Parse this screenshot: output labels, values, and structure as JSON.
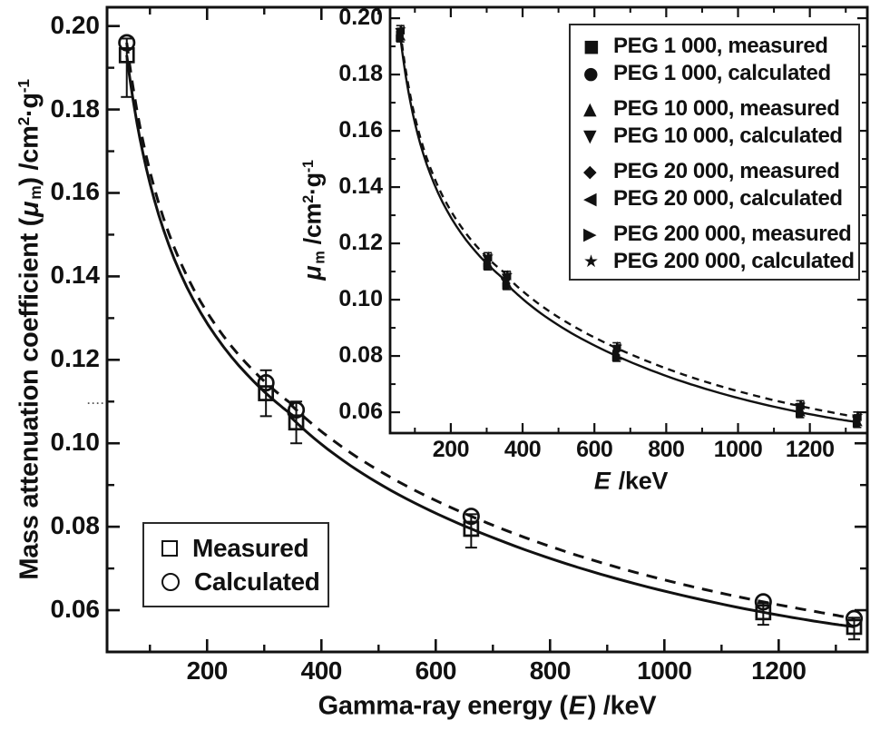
{
  "colors": {
    "ink": "#111111",
    "background": "#ffffff"
  },
  "noise_dots": "····",
  "chart_data": [
    {
      "id": "main",
      "type": "scatter",
      "title": "",
      "xlabel": "Gamma-ray energy (E) /keV",
      "ylabel": "Mass attenuation coefficient (μm) /cm²·g⁻¹",
      "xlabel_parts": [
        {
          "t": "Gamma-ray energy (",
          "s": "n"
        },
        {
          "t": "E",
          "s": "i"
        },
        {
          "t": ") /keV",
          "s": "n"
        }
      ],
      "ylabel_parts": [
        {
          "t": "Mass attenuation coefficient (",
          "s": "n"
        },
        {
          "t": "μ",
          "s": "i"
        },
        {
          "t": "m",
          "s": "sub"
        },
        {
          "t": ") /cm",
          "s": "n"
        },
        {
          "t": "2",
          "s": "sup"
        },
        {
          "t": "·g",
          "s": "n"
        },
        {
          "t": "-1",
          "s": "sup"
        }
      ],
      "xlim": [
        25,
        1355
      ],
      "ylim": [
        0.05,
        0.2045
      ],
      "grid": false,
      "x_major_ticks": [
        200,
        400,
        600,
        800,
        1000,
        1200
      ],
      "x_minor_ticks": [
        100,
        300,
        500,
        700,
        900,
        1100,
        1300
      ],
      "x_tick_labels": [
        "200",
        "400",
        "600",
        "800",
        "1000",
        "1200"
      ],
      "y_major_ticks": [
        0.06,
        0.08,
        0.1,
        0.12,
        0.14,
        0.16,
        0.18,
        0.2
      ],
      "y_minor_ticks": [
        0.07,
        0.09,
        0.11,
        0.13,
        0.15,
        0.17,
        0.19
      ],
      "y_tick_labels": [
        "0.06",
        "0.08",
        "0.10",
        "0.12",
        "0.14",
        "0.16",
        "0.18",
        "0.20"
      ],
      "x": [
        59.5,
        303,
        356,
        662,
        1173,
        1332
      ],
      "series": [
        {
          "name": "Measured",
          "marker": "open-square",
          "line": "solid",
          "values": [
            0.193,
            0.112,
            0.105,
            0.0795,
            0.0595,
            0.056
          ],
          "err_up": [
            0.004,
            0.0055,
            0.005,
            0.0035,
            0.0022,
            0.0022
          ],
          "err_down": [
            0.01,
            0.0055,
            0.005,
            0.0045,
            0.003,
            0.003
          ]
        },
        {
          "name": "Calculated",
          "marker": "open-circle",
          "line": "dashed",
          "values": [
            0.196,
            0.1145,
            0.108,
            0.0825,
            0.062,
            0.058
          ]
        }
      ],
      "legend": {
        "position": "lower-left",
        "entries": [
          {
            "marker": "open-square",
            "label": "Measured"
          },
          {
            "marker": "open-circle",
            "label": "Calculated"
          }
        ]
      }
    },
    {
      "id": "inset",
      "type": "scatter",
      "title": "",
      "xlabel": "E /keV",
      "ylabel": "μm /cm²·g⁻¹",
      "xlabel_parts": [
        {
          "t": "E",
          "s": "i"
        },
        {
          "t": " /keV",
          "s": "n"
        }
      ],
      "ylabel_parts": [
        {
          "t": "μ",
          "s": "i"
        },
        {
          "t": "m",
          "s": "sub"
        },
        {
          "t": " /cm",
          "s": "n"
        },
        {
          "t": "2",
          "s": "sup"
        },
        {
          "t": "·g",
          "s": "n"
        },
        {
          "t": "-1",
          "s": "sup"
        }
      ],
      "xlim": [
        31,
        1360
      ],
      "ylim": [
        0.0526,
        0.2039
      ],
      "grid": false,
      "x_major_ticks": [
        200,
        400,
        600,
        800,
        1000,
        1200
      ],
      "x_minor_ticks": [
        100,
        300,
        500,
        700,
        900,
        1100,
        1300
      ],
      "x_tick_labels": [
        "200",
        "400",
        "600",
        "800",
        "1000",
        "1200"
      ],
      "y_major_ticks": [
        0.06,
        0.08,
        0.1,
        0.12,
        0.14,
        0.16,
        0.18,
        0.2
      ],
      "y_minor_ticks": [
        0.07,
        0.09,
        0.11,
        0.13,
        0.15,
        0.17,
        0.19
      ],
      "y_tick_labels": [
        "0.06",
        "0.08",
        "0.10",
        "0.12",
        "0.14",
        "0.16",
        "0.18",
        "0.20"
      ],
      "x": [
        59.5,
        303,
        356,
        662,
        1173,
        1332
      ],
      "series": [
        {
          "name": "PEG 1 000, measured",
          "marker": "square",
          "role": "measured",
          "values": [
            0.1929,
            0.1119,
            0.1049,
            0.0794,
            0.0594,
            0.0559
          ]
        },
        {
          "name": "PEG 1 000, calculated",
          "marker": "circle",
          "role": "calculated",
          "values": [
            0.1949,
            0.1142,
            0.1076,
            0.0822,
            0.0616,
            0.0576
          ]
        },
        {
          "name": "PEG 10 000, measured",
          "marker": "triangle-up",
          "role": "measured",
          "values": [
            0.1933,
            0.1123,
            0.1053,
            0.0798,
            0.0598,
            0.0563
          ]
        },
        {
          "name": "PEG 10 000, calculated",
          "marker": "triangle-down",
          "role": "calculated",
          "values": [
            0.1953,
            0.1146,
            0.108,
            0.0826,
            0.062,
            0.058
          ]
        },
        {
          "name": "PEG 20 000, measured",
          "marker": "diamond",
          "role": "measured",
          "values": [
            0.1937,
            0.1127,
            0.1057,
            0.0802,
            0.0602,
            0.0567
          ]
        },
        {
          "name": "PEG 20 000, calculated",
          "marker": "triangle-left",
          "role": "calculated",
          "values": [
            0.1957,
            0.115,
            0.1084,
            0.083,
            0.0624,
            0.0584
          ]
        },
        {
          "name": "PEG 200 000, measured",
          "marker": "triangle-right",
          "role": "measured",
          "values": [
            0.1941,
            0.1131,
            0.1061,
            0.0806,
            0.0606,
            0.0571
          ]
        },
        {
          "name": "PEG 200 000, calculated",
          "marker": "star",
          "role": "calculated",
          "values": [
            0.1961,
            0.1154,
            0.1088,
            0.0834,
            0.0628,
            0.0588
          ]
        }
      ],
      "legend": {
        "position": "upper-right",
        "entries": [
          {
            "glyph": "■",
            "label": "PEG 1 000, measured"
          },
          {
            "glyph": "●",
            "label": "PEG 1 000, calculated"
          },
          {
            "glyph": "▲",
            "label": "PEG 10 000, measured"
          },
          {
            "glyph": "▼",
            "label": "PEG 10 000, calculated"
          },
          {
            "glyph": "◆",
            "label": "PEG 20 000, measured"
          },
          {
            "glyph": "◀",
            "label": "PEG 20 000, calculated"
          },
          {
            "glyph": "▶",
            "label": "PEG 200 000, measured"
          },
          {
            "glyph": "★",
            "label": "PEG 200 000, calculated"
          }
        ]
      }
    }
  ]
}
